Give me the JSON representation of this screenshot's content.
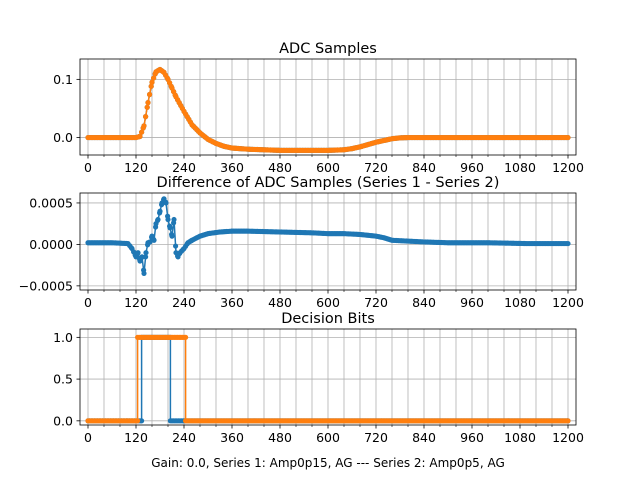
{
  "figure": {
    "xlabel": "Gain: 0.0, Series 1: Amp0p15, AG --- Series 2: Amp0p5, AG"
  },
  "colors": {
    "series1": "#1f77b4",
    "series2": "#ff7f0e",
    "grid": "#b0b0b0"
  },
  "chart_data": [
    {
      "type": "line",
      "title": "ADC Samples",
      "xlim": [
        -20,
        1220
      ],
      "ylim": [
        -0.03,
        0.135
      ],
      "xticks": [
        0,
        120,
        240,
        360,
        480,
        600,
        720,
        840,
        960,
        1080,
        1200
      ],
      "xtick_labels": [
        "0",
        "120",
        "240",
        "360",
        "480",
        "600",
        "720",
        "840",
        "960",
        "1080",
        "1200"
      ],
      "yticks": [
        0.0,
        0.1
      ],
      "ytick_labels": [
        "0.0",
        "0.1"
      ],
      "grid": true,
      "series": [
        {
          "color": "#1f77b4",
          "marker": "dot",
          "x": [
            0,
            120,
            130,
            140,
            150,
            160,
            170,
            180,
            190,
            200,
            210,
            220,
            240,
            260,
            280,
            300,
            320,
            340,
            360,
            400,
            440,
            480,
            540,
            600,
            640,
            660,
            680,
            700,
            720,
            740,
            760,
            780,
            800,
            820,
            840,
            900,
            1000,
            1100,
            1200
          ],
          "y": [
            0,
            0,
            0.002,
            0.02,
            0.06,
            0.095,
            0.113,
            0.117,
            0.112,
            0.1,
            0.085,
            0.07,
            0.045,
            0.022,
            0.008,
            -0.003,
            -0.01,
            -0.015,
            -0.018,
            -0.02,
            -0.021,
            -0.022,
            -0.022,
            -0.022,
            -0.021,
            -0.019,
            -0.016,
            -0.012,
            -0.008,
            -0.005,
            -0.002,
            -0.0005,
            0,
            0,
            0,
            0,
            0,
            0,
            0
          ]
        },
        {
          "color": "#ff7f0e",
          "marker": "dot",
          "x": [
            0,
            120,
            130,
            140,
            150,
            160,
            170,
            180,
            190,
            200,
            210,
            220,
            240,
            260,
            280,
            300,
            320,
            340,
            360,
            400,
            440,
            480,
            540,
            600,
            640,
            660,
            680,
            700,
            720,
            740,
            760,
            780,
            800,
            820,
            840,
            900,
            1000,
            1100,
            1200
          ],
          "y": [
            0,
            0,
            0.002,
            0.02,
            0.06,
            0.095,
            0.113,
            0.117,
            0.112,
            0.1,
            0.085,
            0.07,
            0.045,
            0.022,
            0.008,
            -0.003,
            -0.01,
            -0.015,
            -0.018,
            -0.02,
            -0.021,
            -0.022,
            -0.022,
            -0.022,
            -0.021,
            -0.019,
            -0.016,
            -0.012,
            -0.008,
            -0.005,
            -0.002,
            -0.0005,
            0,
            0,
            0,
            0,
            0,
            0,
            0
          ]
        }
      ]
    },
    {
      "type": "line",
      "title": "Difference of ADC Samples (Series 1 - Series 2)",
      "xlim": [
        -20,
        1220
      ],
      "ylim": [
        -0.00055,
        0.00062
      ],
      "xticks": [
        0,
        120,
        240,
        360,
        480,
        600,
        720,
        840,
        960,
        1080,
        1200
      ],
      "xtick_labels": [
        "0",
        "120",
        "240",
        "360",
        "480",
        "600",
        "720",
        "840",
        "960",
        "1080",
        "1200"
      ],
      "yticks": [
        -0.0005,
        0.0,
        0.0005
      ],
      "ytick_labels": [
        "−0.0005",
        "0.0000",
        "0.0005"
      ],
      "grid": true,
      "series": [
        {
          "color": "#1f77b4",
          "marker": "dot",
          "x": [
            0,
            60,
            100,
            110,
            120,
            125,
            130,
            135,
            140,
            145,
            150,
            155,
            160,
            165,
            170,
            175,
            180,
            185,
            190,
            195,
            200,
            205,
            210,
            215,
            220,
            225,
            230,
            240,
            250,
            260,
            280,
            300,
            330,
            360,
            400,
            480,
            560,
            600,
            640,
            680,
            720,
            740,
            760,
            800,
            840,
            900,
            1000,
            1100,
            1200
          ],
          "y": [
            2e-05,
            2e-05,
            1e-05,
            -5e-05,
            -0.00015,
            -0.0001,
            -0.0002,
            -0.00015,
            -0.00035,
            -0.0001,
            2e-05,
            3e-05,
            0.0001,
            5e-05,
            0.00025,
            0.0003,
            0.0004,
            0.0005,
            0.00055,
            0.0005,
            0.0003,
            0.0002,
            0.0001,
            0.0003,
            -0.0001,
            -0.00015,
            -0.0001,
            -5e-05,
            2e-05,
            5e-05,
            0.0001,
            0.00013,
            0.00015,
            0.00016,
            0.00016,
            0.00015,
            0.00014,
            0.00013,
            0.00013,
            0.00012,
            0.0001,
            8e-05,
            5e-05,
            4e-05,
            3e-05,
            2e-05,
            2e-05,
            1e-05,
            1e-05
          ]
        }
      ]
    },
    {
      "type": "line",
      "title": "Decision Bits",
      "xlim": [
        -20,
        1220
      ],
      "ylim": [
        -0.05,
        1.1
      ],
      "xticks": [
        0,
        120,
        240,
        360,
        480,
        600,
        720,
        840,
        960,
        1080,
        1200
      ],
      "xtick_labels": [
        "0",
        "120",
        "240",
        "360",
        "480",
        "600",
        "720",
        "840",
        "960",
        "1080",
        "1200"
      ],
      "yticks": [
        0.0,
        0.5,
        1.0
      ],
      "ytick_labels": [
        "0.0",
        "0.5",
        "1.0"
      ],
      "grid": true,
      "series": [
        {
          "color": "#1f77b4",
          "marker": "dot",
          "x": [
            0,
            134,
            134,
            206,
            206,
            1200
          ],
          "y": [
            0,
            0,
            1,
            1,
            0,
            0
          ]
        },
        {
          "color": "#ff7f0e",
          "marker": "dot",
          "x": [
            0,
            124,
            124,
            244,
            244,
            1200
          ],
          "y": [
            0,
            0,
            1,
            1,
            0,
            0
          ]
        }
      ]
    }
  ]
}
